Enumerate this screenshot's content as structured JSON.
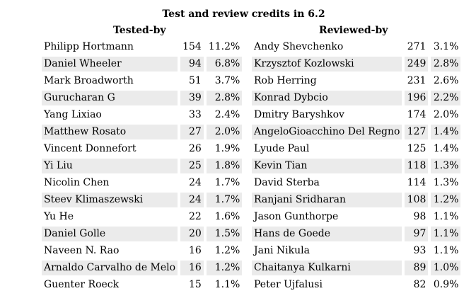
{
  "title": "Test and review credits in 6.2",
  "tested": {
    "heading": "Tested-by",
    "rows": [
      {
        "name": "Philipp Hortmann",
        "count": "154",
        "pct": "11.2%"
      },
      {
        "name": "Daniel Wheeler",
        "count": "94",
        "pct": "6.8%"
      },
      {
        "name": "Mark Broadworth",
        "count": "51",
        "pct": "3.7%"
      },
      {
        "name": "Gurucharan G",
        "count": "39",
        "pct": "2.8%"
      },
      {
        "name": "Yang Lixiao",
        "count": "33",
        "pct": "2.4%"
      },
      {
        "name": "Matthew Rosato",
        "count": "27",
        "pct": "2.0%"
      },
      {
        "name": "Vincent Donnefort",
        "count": "26",
        "pct": "1.9%"
      },
      {
        "name": "Yi Liu",
        "count": "25",
        "pct": "1.8%"
      },
      {
        "name": "Nicolin Chen",
        "count": "24",
        "pct": "1.7%"
      },
      {
        "name": "Steev Klimaszewski",
        "count": "24",
        "pct": "1.7%"
      },
      {
        "name": "Yu He",
        "count": "22",
        "pct": "1.6%"
      },
      {
        "name": "Daniel Golle",
        "count": "20",
        "pct": "1.5%"
      },
      {
        "name": "Naveen N. Rao",
        "count": "16",
        "pct": "1.2%"
      },
      {
        "name": "Arnaldo Carvalho de Melo",
        "count": "16",
        "pct": "1.2%"
      },
      {
        "name": "Guenter Roeck",
        "count": "15",
        "pct": "1.1%"
      }
    ]
  },
  "reviewed": {
    "heading": "Reviewed-by",
    "rows": [
      {
        "name": "Andy Shevchenko",
        "count": "271",
        "pct": "3.1%"
      },
      {
        "name": "Krzysztof Kozlowski",
        "count": "249",
        "pct": "2.8%"
      },
      {
        "name": "Rob Herring",
        "count": "231",
        "pct": "2.6%"
      },
      {
        "name": "Konrad Dybcio",
        "count": "196",
        "pct": "2.2%"
      },
      {
        "name": "Dmitry Baryshkov",
        "count": "174",
        "pct": "2.0%"
      },
      {
        "name": "AngeloGioacchino Del Regno",
        "count": "127",
        "pct": "1.4%"
      },
      {
        "name": "Lyude Paul",
        "count": "125",
        "pct": "1.4%"
      },
      {
        "name": "Kevin Tian",
        "count": "118",
        "pct": "1.3%"
      },
      {
        "name": "David Sterba",
        "count": "114",
        "pct": "1.3%"
      },
      {
        "name": "Ranjani Sridharan",
        "count": "108",
        "pct": "1.2%"
      },
      {
        "name": "Jason Gunthorpe",
        "count": "98",
        "pct": "1.1%"
      },
      {
        "name": "Hans de Goede",
        "count": "97",
        "pct": "1.1%"
      },
      {
        "name": "Jani Nikula",
        "count": "93",
        "pct": "1.1%"
      },
      {
        "name": "Chaitanya Kulkarni",
        "count": "89",
        "pct": "1.0%"
      },
      {
        "name": "Peter Ujfalusi",
        "count": "82",
        "pct": "0.9%"
      }
    ]
  }
}
